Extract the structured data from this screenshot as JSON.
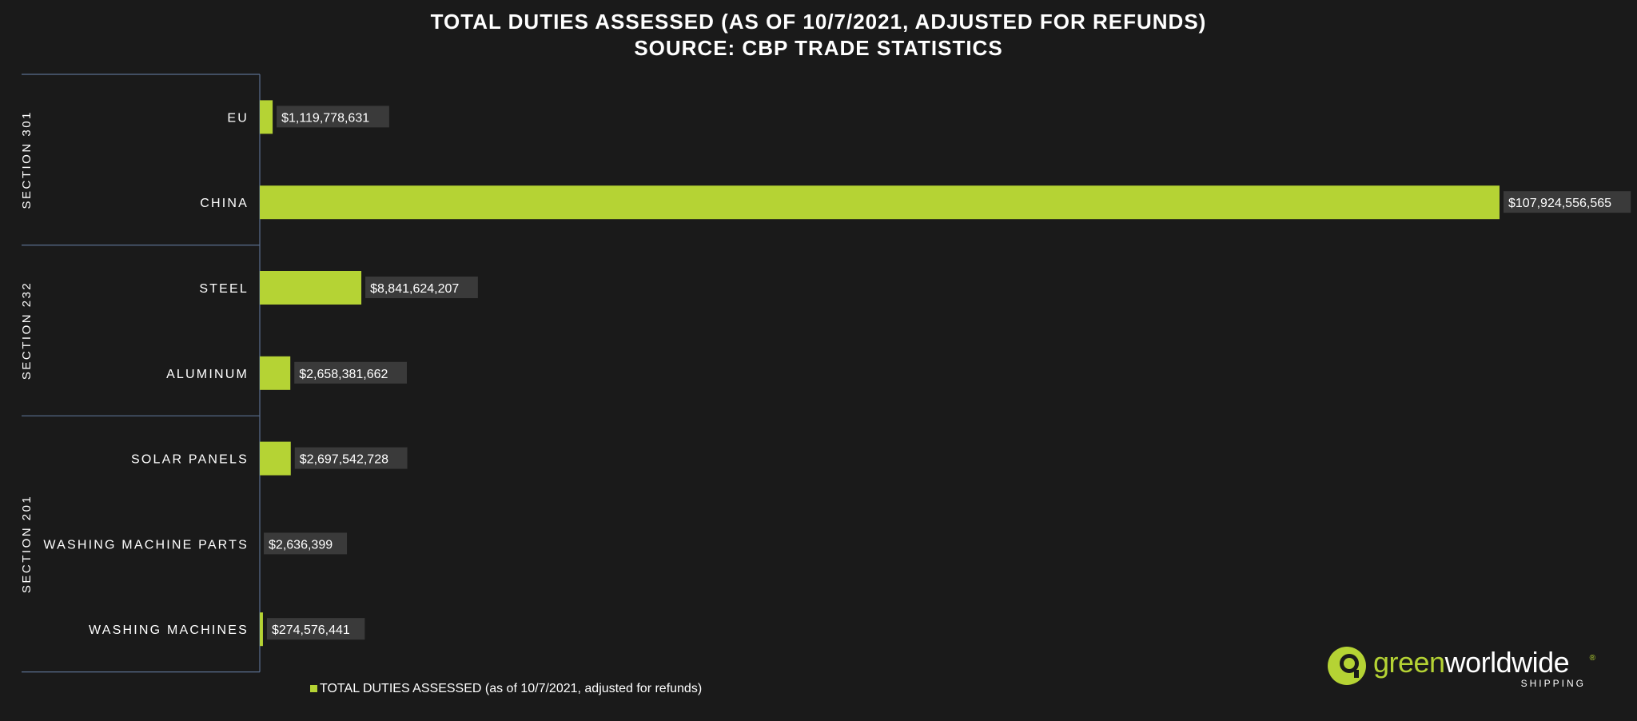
{
  "title": {
    "line1": "TOTAL DUTIES ASSESSED (AS OF 10/7/2021, ADJUSTED FOR REFUNDS)",
    "line2": "SOURCE: CBP TRADE STATISTICS"
  },
  "colors": {
    "background": "#1a1a1a",
    "bar": "#b5d334",
    "label_box": "#3a3a3a",
    "divider": "#5a6f8f",
    "text": "#ffffff"
  },
  "chart_data": {
    "type": "bar",
    "orientation": "horizontal",
    "groups": [
      {
        "name": "SECTION 301",
        "categories": [
          "EU",
          "CHINA"
        ]
      },
      {
        "name": "SECTION 232",
        "categories": [
          "STEEL",
          "ALUMINUM"
        ]
      },
      {
        "name": "SECTION 201",
        "categories": [
          "SOLAR PANELS",
          "WASHING MACHINE PARTS",
          "WASHING MACHINES"
        ]
      }
    ],
    "categories": [
      "EU",
      "CHINA",
      "STEEL",
      "ALUMINUM",
      "SOLAR PANELS",
      "WASHING MACHINE PARTS",
      "WASHING MACHINES"
    ],
    "series": [
      {
        "name": "TOTAL DUTIES ASSESSED (as of 10/7/2021, adjusted for refunds)",
        "values": [
          1119778631,
          107924556565,
          8841624207,
          2658381662,
          2697542728,
          2636399,
          274576441
        ],
        "labels": [
          "$1,119,778,631",
          "$107,924,556,565",
          "$8,841,624,207",
          "$2,658,381,662",
          "$2,697,542,728",
          "$2,636,399",
          "$274,576,441"
        ]
      }
    ],
    "xlim": [
      0,
      107924556565
    ],
    "grid": false,
    "legend_position": "bottom-left"
  },
  "logo": {
    "word1": "green",
    "word2": "worldwide",
    "subtitle": "SHIPPING",
    "reg": "®"
  }
}
